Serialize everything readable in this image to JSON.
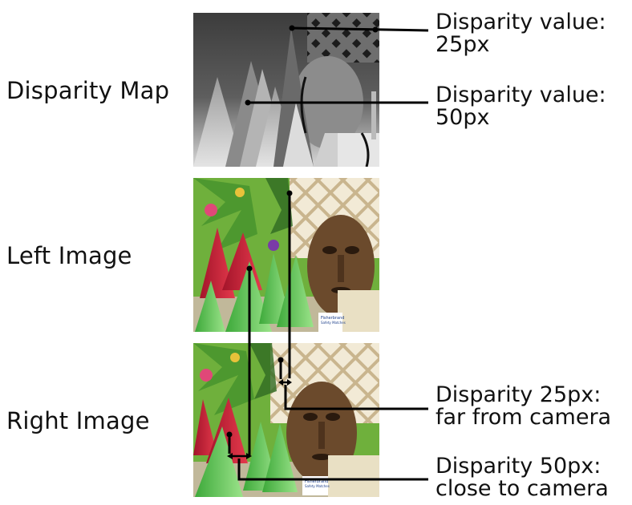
{
  "rows": {
    "disparity_map": "Disparity Map",
    "left_image": "Left Image",
    "right_image": "Right Image"
  },
  "callouts": {
    "far_value": {
      "line1": "Disparity value:",
      "line2": "25px"
    },
    "near_value": {
      "line1": "Disparity value:",
      "line2": "50px"
    },
    "far_right": {
      "line1": "Disparity 25px:",
      "line2": "far from camera"
    },
    "near_right": {
      "line1": "Disparity 50px:",
      "line2": "close to camera"
    }
  },
  "matchbox_text": {
    "brand": "Fisherbrand",
    "line1": "Safety Matches",
    "line2": ""
  },
  "colors": {
    "leader": "#000000",
    "cone_red": "#d8253a",
    "cone_green": "#5cc94a",
    "foliage": "#6fb03c",
    "lattice": "#d9c9a6",
    "mask": "#6b4a2c"
  }
}
